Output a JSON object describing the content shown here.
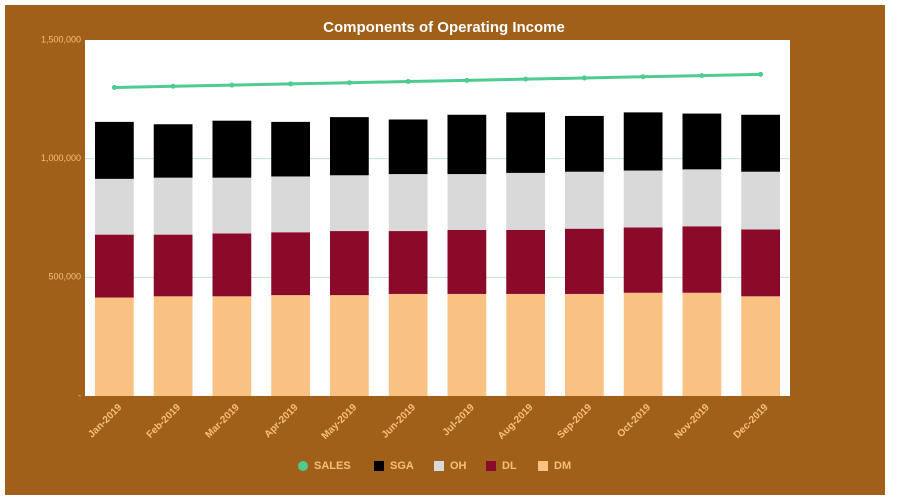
{
  "chart_data": {
    "type": "bar",
    "stacked": true,
    "title": "Components of Operating Income",
    "categories": [
      "Jan-2019",
      "Feb-2019",
      "Mar-2019",
      "Apr-2019",
      "May-2019",
      "Jun-2019",
      "Jul-2019",
      "Aug-2019",
      "Sep-2019",
      "Oct-2019",
      "Nov-2019",
      "Dec-2019"
    ],
    "series": [
      {
        "name": "SALES",
        "type": "line",
        "color": "#4ecb8f",
        "values": [
          1300000,
          1305000,
          1310000,
          1315000,
          1320000,
          1325000,
          1330000,
          1335000,
          1340000,
          1345000,
          1350000,
          1355000
        ]
      },
      {
        "name": "SGA",
        "color": "#000000",
        "values": [
          240000,
          225000,
          240000,
          230000,
          245000,
          230000,
          250000,
          255000,
          235000,
          245000,
          235000,
          240000
        ]
      },
      {
        "name": "OH",
        "color": "#d9d9d9",
        "values": [
          235000,
          240000,
          235000,
          235000,
          235000,
          240000,
          235000,
          240000,
          240000,
          240000,
          240000,
          243000
        ]
      },
      {
        "name": "DL",
        "color": "#8b0a2a",
        "values": [
          265000,
          260000,
          265000,
          265000,
          270000,
          265000,
          270000,
          270000,
          275000,
          275000,
          280000,
          282000
        ]
      },
      {
        "name": "DM",
        "color": "#f9c282",
        "values": [
          415000,
          420000,
          420000,
          425000,
          425000,
          430000,
          430000,
          430000,
          430000,
          435000,
          435000,
          420000
        ]
      }
    ],
    "ylim": [
      0,
      1500000
    ],
    "yticks": [
      {
        "value": 0,
        "label": "-"
      },
      {
        "value": 500000,
        "label": "500,000"
      },
      {
        "value": 1000000,
        "label": "1,000,000"
      },
      {
        "value": 1500000,
        "label": "1,500,000"
      }
    ],
    "grid": true,
    "legend": "bottom"
  }
}
